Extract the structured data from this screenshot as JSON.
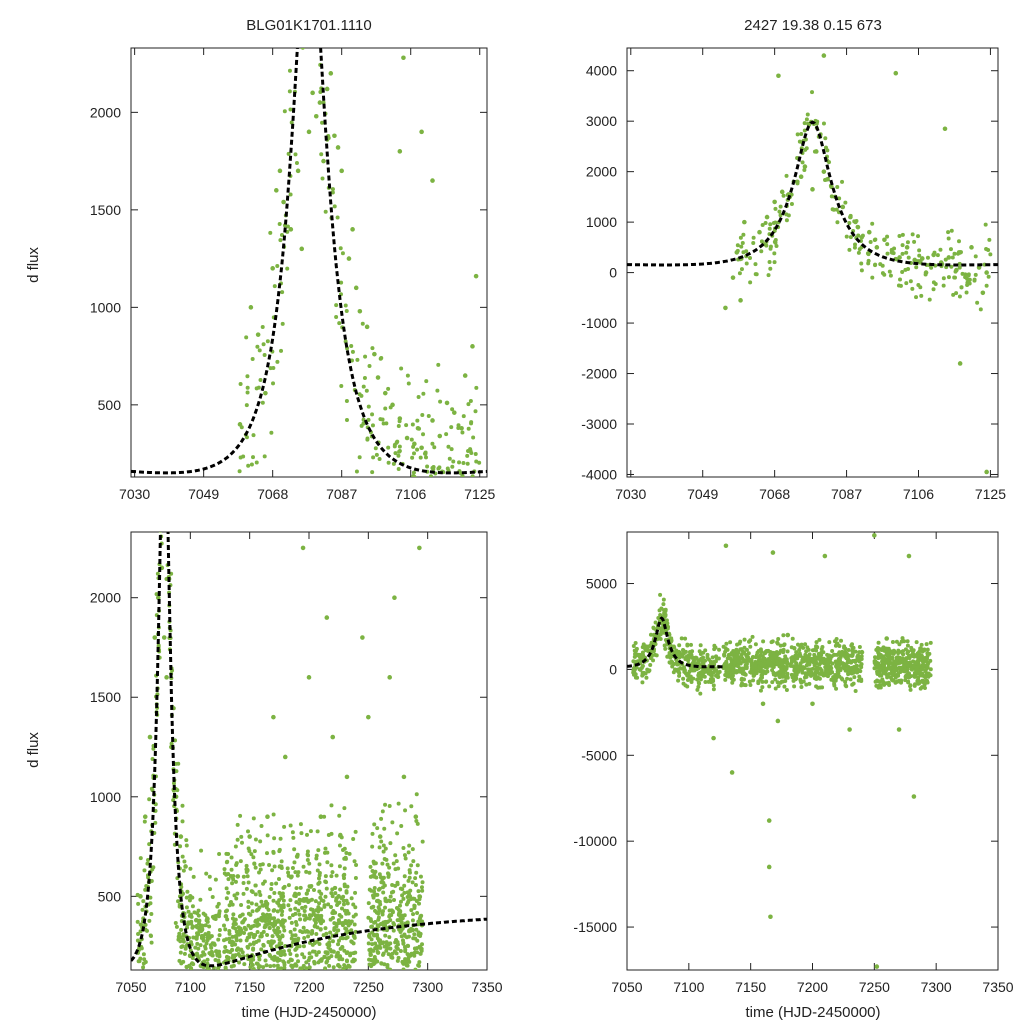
{
  "figure": {
    "title_left": "BLG01K1701.1110",
    "title_right": "2427  19.38  0.15  673",
    "ylabel": "d flux",
    "xlabel": "time (HJD-2450000)"
  },
  "colors": {
    "points": "#7cb342",
    "model": "#000000",
    "axes": "#222222"
  },
  "chart_data": [
    {
      "type": "scatter",
      "id": "top-left",
      "xlim": [
        7029,
        7127
      ],
      "ylim": [
        130,
        2330
      ],
      "xticks": [
        7030,
        7049,
        7068,
        7087,
        7106,
        7125
      ],
      "yticks": [
        500,
        1000,
        1500,
        2000
      ],
      "ylabel": "d flux",
      "xlabel": "",
      "series": [
        {
          "name": "data",
          "points": [
            [
              7059,
              400
            ],
            [
              7062,
              1000
            ],
            [
              7064,
              860
            ],
            [
              7066,
              560
            ],
            [
              7068,
              1200
            ],
            [
              7069,
              1600
            ],
            [
              7070,
              1700
            ],
            [
              7071,
              1540
            ],
            [
              7073,
              1400
            ],
            [
              7075,
              1700
            ],
            [
              7076,
              1300
            ],
            [
              7078,
              1900
            ],
            [
              7079,
              2100
            ],
            [
              7080,
              1980
            ],
            [
              7081,
              2050
            ],
            [
              7082,
              1750
            ],
            [
              7083,
              2120
            ],
            [
              7084,
              2200
            ],
            [
              7085,
              1880
            ],
            [
              7086,
              1820
            ],
            [
              7087,
              1700
            ],
            [
              7089,
              1250
            ],
            [
              7090,
              1400
            ],
            [
              7091,
              1100
            ],
            [
              7092,
              980
            ],
            [
              7094,
              900
            ],
            [
              7096,
              760
            ],
            [
              7097,
              640
            ],
            [
              7099,
              560
            ],
            [
              7101,
              500
            ],
            [
              7103,
              430
            ],
            [
              7105,
              330
            ],
            [
              7107,
              300
            ],
            [
              7108,
              380
            ],
            [
              7109,
              280
            ],
            [
              7110,
              250
            ],
            [
              7112,
              420
            ],
            [
              7114,
              340
            ],
            [
              7116,
              510
            ],
            [
              7118,
              460
            ],
            [
              7120,
              380
            ],
            [
              7121,
              650
            ],
            [
              7123,
              800
            ],
            [
              7124,
              1160
            ],
            [
              7104,
              2280
            ],
            [
              7103,
              1800
            ],
            [
              7109,
              1900
            ],
            [
              7112,
              1650
            ]
          ]
        },
        {
          "name": "model",
          "style": "dashed"
        }
      ]
    },
    {
      "type": "scatter",
      "id": "top-right",
      "xlim": [
        7029,
        7127
      ],
      "ylim": [
        -4050,
        4450
      ],
      "xticks": [
        7030,
        7049,
        7068,
        7087,
        7106,
        7125
      ],
      "yticks": [
        4000,
        3000,
        2000,
        1000,
        0,
        -1000,
        -2000,
        -3000,
        -4000
      ],
      "ylabel": "",
      "xlabel": "",
      "series": [
        {
          "name": "data",
          "points": [
            [
              7055,
              -700
            ],
            [
              7057,
              -100
            ],
            [
              7058,
              400
            ],
            [
              7059,
              -550
            ],
            [
              7060,
              1000
            ],
            [
              7064,
              800
            ],
            [
              7066,
              1100
            ],
            [
              7068,
              1400
            ],
            [
              7070,
              1600
            ],
            [
              7072,
              1500
            ],
            [
              7074,
              1800
            ],
            [
              7075,
              1900
            ],
            [
              7076,
              2100
            ],
            [
              7078,
              1650
            ],
            [
              7079,
              2400
            ],
            [
              7080,
              2700
            ],
            [
              7081,
              2000
            ],
            [
              7082,
              1850
            ],
            [
              7083,
              1700
            ],
            [
              7084,
              1500
            ],
            [
              7086,
              1300
            ],
            [
              7088,
              1100
            ],
            [
              7090,
              900
            ],
            [
              7091,
              700
            ],
            [
              7093,
              800
            ],
            [
              7095,
              500
            ],
            [
              7097,
              650
            ],
            [
              7099,
              400
            ],
            [
              7101,
              300
            ],
            [
              7103,
              500
            ],
            [
              7105,
              250
            ],
            [
              7107,
              280
            ],
            [
              7108,
              0
            ],
            [
              7109,
              150
            ],
            [
              7110,
              350
            ],
            [
              7112,
              200
            ],
            [
              7114,
              300
            ],
            [
              7116,
              50
            ],
            [
              7117,
              400
            ],
            [
              7119,
              -200
            ],
            [
              7120,
              500
            ],
            [
              7122,
              100
            ],
            [
              7123,
              -400
            ],
            [
              7124,
              0
            ],
            [
              7069,
              3900
            ],
            [
              7081,
              4300
            ],
            [
              7100,
              3950
            ],
            [
              7113,
              2850
            ],
            [
              7117,
              -1800
            ],
            [
              7124,
              -3950
            ]
          ]
        },
        {
          "name": "model",
          "style": "dashed"
        }
      ]
    },
    {
      "type": "scatter",
      "id": "bottom-left",
      "xlim": [
        7050,
        7350
      ],
      "ylim": [
        130,
        2330
      ],
      "xticks": [
        7050,
        7100,
        7150,
        7200,
        7250,
        7300,
        7350
      ],
      "yticks": [
        500,
        1000,
        1500,
        2000
      ],
      "ylabel": "d flux",
      "xlabel": "time (HJD-2450000)",
      "series": [
        {
          "name": "data",
          "points": [
            [
              7058,
              500
            ],
            [
              7062,
              900
            ],
            [
              7066,
              1300
            ],
            [
              7070,
              1800
            ],
            [
              7073,
              2000
            ],
            [
              7076,
              2150
            ],
            [
              7078,
              1800
            ],
            [
              7080,
              1600
            ],
            [
              7084,
              1250
            ],
            [
              7088,
              1000
            ],
            [
              7092,
              800
            ],
            [
              7096,
              650
            ],
            [
              7100,
              500
            ],
            [
              7105,
              380
            ],
            [
              7110,
              300
            ],
            [
              7118,
              220
            ],
            [
              7130,
              400
            ],
            [
              7140,
              600
            ],
            [
              7150,
              800
            ],
            [
              7160,
              300
            ],
            [
              7165,
              900
            ],
            [
              7170,
              1400
            ],
            [
              7180,
              1200
            ],
            [
              7185,
              250
            ],
            [
              7190,
              700
            ],
            [
              7195,
              2250
            ],
            [
              7200,
              1600
            ],
            [
              7205,
              350
            ],
            [
              7210,
              900
            ],
            [
              7215,
              1900
            ],
            [
              7220,
              1300
            ],
            [
              7225,
              500
            ],
            [
              7232,
              1100
            ],
            [
              7238,
              300
            ],
            [
              7245,
              1800
            ],
            [
              7250,
              1400
            ],
            [
              7255,
              600
            ],
            [
              7260,
              800
            ],
            [
              7268,
              1600
            ],
            [
              7272,
              2000
            ],
            [
              7280,
              1100
            ],
            [
              7285,
              500
            ],
            [
              7290,
              900
            ],
            [
              7293,
              2250
            ]
          ]
        },
        {
          "name": "model",
          "style": "dashed"
        }
      ]
    },
    {
      "type": "scatter",
      "id": "bottom-right",
      "xlim": [
        7050,
        7350
      ],
      "ylim": [
        -17500,
        8000
      ],
      "xticks": [
        7050,
        7100,
        7150,
        7200,
        7250,
        7300,
        7350
      ],
      "yticks": [
        5000,
        0,
        -5000,
        -10000,
        -15000
      ],
      "ylabel": "",
      "xlabel": "time (HJD-2450000)",
      "series": [
        {
          "name": "data",
          "points": [
            [
              7060,
              800
            ],
            [
              7066,
              1300
            ],
            [
              7072,
              2000
            ],
            [
              7078,
              3000
            ],
            [
              7083,
              1700
            ],
            [
              7090,
              1000
            ],
            [
              7100,
              800
            ],
            [
              7110,
              600
            ],
            [
              7120,
              -4000
            ],
            [
              7130,
              7200
            ],
            [
              7135,
              -6000
            ],
            [
              7140,
              1000
            ],
            [
              7150,
              500
            ],
            [
              7160,
              -2000
            ],
            [
              7165,
              -8800
            ],
            [
              7165,
              -11500
            ],
            [
              7166,
              -14400
            ],
            [
              7168,
              6800
            ],
            [
              7172,
              -3000
            ],
            [
              7180,
              2000
            ],
            [
              7190,
              800
            ],
            [
              7200,
              -2000
            ],
            [
              7210,
              6600
            ],
            [
              7220,
              1500
            ],
            [
              7230,
              -3500
            ],
            [
              7240,
              1000
            ],
            [
              7250,
              7800
            ],
            [
              7252,
              -17300
            ],
            [
              7260,
              1800
            ],
            [
              7270,
              -3500
            ],
            [
              7278,
              6600
            ],
            [
              7282,
              -7400
            ],
            [
              7290,
              500
            ]
          ]
        },
        {
          "name": "model",
          "style": "dashed"
        }
      ]
    }
  ]
}
